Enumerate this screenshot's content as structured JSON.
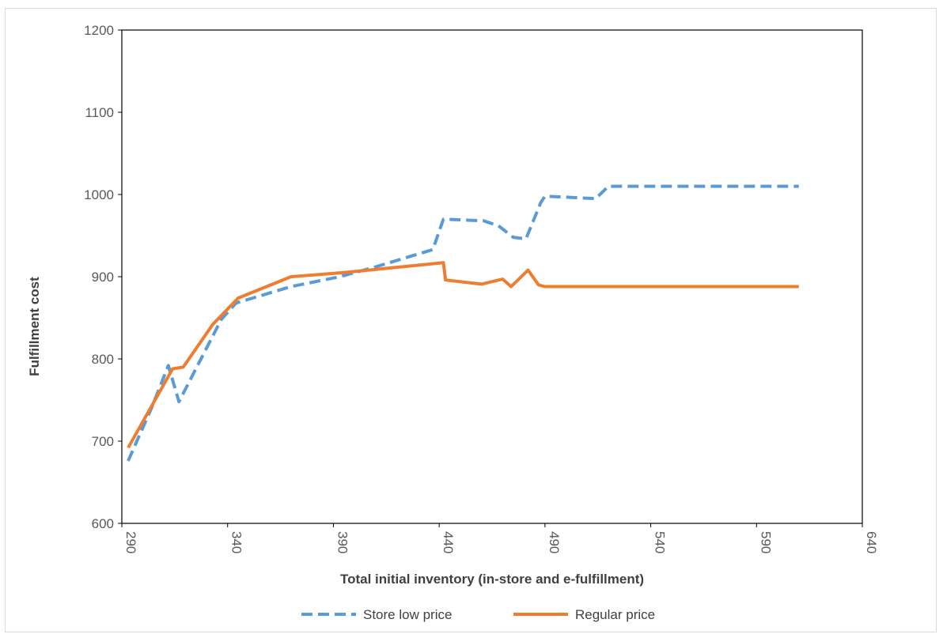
{
  "chart_data": {
    "type": "line",
    "title": "",
    "xlabel": "Total initial inventory (in-store and e-fulfillment)",
    "ylabel": "Fulfillment cost",
    "xlim": [
      290,
      640
    ],
    "ylim": [
      600,
      1200
    ],
    "xticks": [
      "290",
      "340",
      "390",
      "440",
      "490",
      "540",
      "590",
      "640"
    ],
    "yticks": [
      "600",
      "700",
      "800",
      "900",
      "1000",
      "1100",
      "1200"
    ],
    "legend_position": "bottom",
    "grid": false,
    "series": [
      {
        "name": "Store low price",
        "color": "#5b9bd5",
        "style": "dashed",
        "points": [
          [
            293,
            676
          ],
          [
            304,
            740
          ],
          [
            312,
            792
          ],
          [
            317,
            748
          ],
          [
            322,
            773
          ],
          [
            337,
            848
          ],
          [
            344,
            868
          ],
          [
            370,
            888
          ],
          [
            393,
            900
          ],
          [
            410,
            912
          ],
          [
            437,
            933
          ],
          [
            442,
            970
          ],
          [
            461,
            968
          ],
          [
            468,
            962
          ],
          [
            475,
            948
          ],
          [
            481,
            946
          ],
          [
            488,
            990
          ],
          [
            490,
            998
          ],
          [
            506,
            996
          ],
          [
            514,
            995
          ],
          [
            520,
            1010
          ],
          [
            610,
            1010
          ]
        ]
      },
      {
        "name": "Regular price",
        "color": "#ed7d31",
        "style": "solid",
        "points": [
          [
            293,
            692
          ],
          [
            314,
            788
          ],
          [
            319,
            790
          ],
          [
            333,
            842
          ],
          [
            345,
            874
          ],
          [
            370,
            900
          ],
          [
            395,
            905
          ],
          [
            442,
            917
          ],
          [
            443,
            896
          ],
          [
            460,
            891
          ],
          [
            470,
            897
          ],
          [
            474,
            888
          ],
          [
            482,
            908
          ],
          [
            487,
            890
          ],
          [
            490,
            888
          ],
          [
            610,
            888
          ]
        ]
      }
    ]
  }
}
